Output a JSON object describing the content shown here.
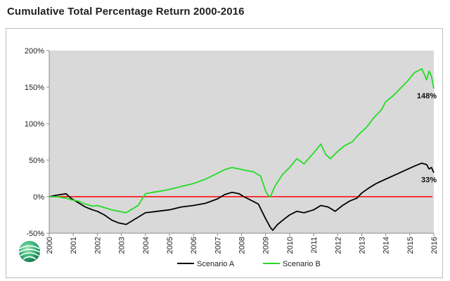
{
  "chart_data": {
    "type": "line",
    "title": "Cumulative Total Percentage Return 2000-2016",
    "xlabel": "",
    "ylabel": "",
    "xlim": [
      2000,
      2016
    ],
    "ylim": [
      -50,
      200
    ],
    "y_ticks": [
      -50,
      0,
      50,
      100,
      150,
      200
    ],
    "y_tick_labels": [
      "-50%",
      "0%",
      "50%",
      "100%",
      "150%",
      "200%"
    ],
    "x_ticks": [
      2000,
      2001,
      2002,
      2003,
      2004,
      2005,
      2006,
      2007,
      2008,
      2009,
      2010,
      2011,
      2012,
      2013,
      2014,
      2015,
      2016
    ],
    "x_tick_labels": [
      "2000",
      "2001",
      "2002",
      "2003",
      "2004",
      "2005",
      "2006",
      "2007",
      "2008",
      "2009",
      "2010",
      "2011",
      "2012",
      "2013",
      "2014",
      "2015",
      "2016"
    ],
    "background": "#d9d9d9",
    "zero_line_color": "#ff0000",
    "series": [
      {
        "name": "Scenario A",
        "color": "#000000",
        "end_label": "33%",
        "points": [
          [
            2000,
            0
          ],
          [
            2000.3,
            2
          ],
          [
            2000.7,
            4
          ],
          [
            2000.9,
            -2
          ],
          [
            2001.2,
            -8
          ],
          [
            2001.5,
            -14
          ],
          [
            2001.8,
            -18
          ],
          [
            2002.0,
            -20
          ],
          [
            2002.3,
            -25
          ],
          [
            2002.6,
            -32
          ],
          [
            2002.9,
            -36
          ],
          [
            2003.2,
            -38
          ],
          [
            2003.4,
            -34
          ],
          [
            2003.7,
            -28
          ],
          [
            2004.0,
            -22
          ],
          [
            2004.5,
            -20
          ],
          [
            2005.0,
            -18
          ],
          [
            2005.5,
            -14
          ],
          [
            2006.0,
            -12
          ],
          [
            2006.5,
            -9
          ],
          [
            2007.0,
            -3
          ],
          [
            2007.3,
            3
          ],
          [
            2007.6,
            6
          ],
          [
            2007.9,
            4
          ],
          [
            2008.1,
            0
          ],
          [
            2008.4,
            -5
          ],
          [
            2008.7,
            -10
          ],
          [
            2009.0,
            -30
          ],
          [
            2009.2,
            -42
          ],
          [
            2009.3,
            -46
          ],
          [
            2009.5,
            -38
          ],
          [
            2009.8,
            -30
          ],
          [
            2010.0,
            -25
          ],
          [
            2010.3,
            -20
          ],
          [
            2010.6,
            -22
          ],
          [
            2011.0,
            -18
          ],
          [
            2011.3,
            -12
          ],
          [
            2011.6,
            -14
          ],
          [
            2011.9,
            -20
          ],
          [
            2012.2,
            -12
          ],
          [
            2012.5,
            -6
          ],
          [
            2012.8,
            -2
          ],
          [
            2013.0,
            5
          ],
          [
            2013.3,
            12
          ],
          [
            2013.6,
            18
          ],
          [
            2014.0,
            24
          ],
          [
            2014.4,
            30
          ],
          [
            2014.8,
            36
          ],
          [
            2015.2,
            42
          ],
          [
            2015.5,
            46
          ],
          [
            2015.7,
            44
          ],
          [
            2015.8,
            38
          ],
          [
            2015.9,
            40
          ],
          [
            2016.0,
            33
          ]
        ]
      },
      {
        "name": "Scenario B",
        "color": "#22dd22",
        "end_label": "148%",
        "points": [
          [
            2000,
            0
          ],
          [
            2000.3,
            0
          ],
          [
            2000.7,
            -2
          ],
          [
            2000.9,
            -4
          ],
          [
            2001.2,
            -6
          ],
          [
            2001.5,
            -10
          ],
          [
            2001.8,
            -13
          ],
          [
            2002.0,
            -12
          ],
          [
            2002.3,
            -15
          ],
          [
            2002.6,
            -18
          ],
          [
            2002.9,
            -20
          ],
          [
            2003.2,
            -22
          ],
          [
            2003.4,
            -18
          ],
          [
            2003.7,
            -12
          ],
          [
            2004.0,
            4
          ],
          [
            2004.3,
            6
          ],
          [
            2004.7,
            8
          ],
          [
            2005.0,
            10
          ],
          [
            2005.5,
            14
          ],
          [
            2006.0,
            18
          ],
          [
            2006.5,
            24
          ],
          [
            2007.0,
            32
          ],
          [
            2007.3,
            37
          ],
          [
            2007.6,
            40
          ],
          [
            2007.9,
            38
          ],
          [
            2008.2,
            36
          ],
          [
            2008.5,
            34
          ],
          [
            2008.8,
            28
          ],
          [
            2009.0,
            8
          ],
          [
            2009.1,
            2
          ],
          [
            2009.2,
            0
          ],
          [
            2009.4,
            15
          ],
          [
            2009.7,
            30
          ],
          [
            2010.0,
            40
          ],
          [
            2010.3,
            52
          ],
          [
            2010.6,
            45
          ],
          [
            2011.0,
            60
          ],
          [
            2011.3,
            72
          ],
          [
            2011.5,
            58
          ],
          [
            2011.7,
            52
          ],
          [
            2012.0,
            62
          ],
          [
            2012.3,
            70
          ],
          [
            2012.6,
            75
          ],
          [
            2012.9,
            86
          ],
          [
            2013.2,
            95
          ],
          [
            2013.5,
            108
          ],
          [
            2013.8,
            118
          ],
          [
            2014.0,
            130
          ],
          [
            2014.3,
            138
          ],
          [
            2014.6,
            148
          ],
          [
            2014.9,
            158
          ],
          [
            2015.2,
            170
          ],
          [
            2015.5,
            175
          ],
          [
            2015.6,
            168
          ],
          [
            2015.7,
            160
          ],
          [
            2015.8,
            172
          ],
          [
            2015.9,
            165
          ],
          [
            2016.0,
            148
          ]
        ]
      }
    ],
    "legend": {
      "position": "bottom"
    }
  }
}
